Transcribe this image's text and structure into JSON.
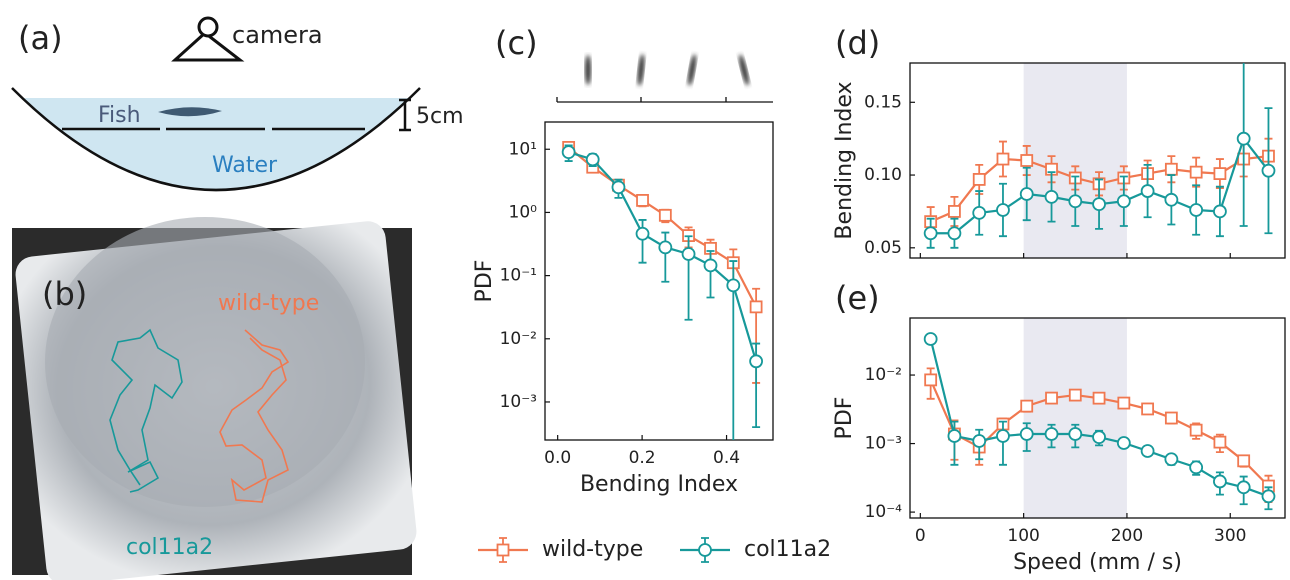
{
  "panel_a": {
    "label": "(a)",
    "camera": "camera",
    "fish": "Fish",
    "scale": "5cm",
    "water": "Water"
  },
  "panel_b": {
    "label": "(b)",
    "wild_type": "wild-type",
    "mutant": "col11a2"
  },
  "chart_data": [
    {
      "type": "line",
      "panel_label": "(c)",
      "x_label": "Bending Index",
      "y_label": "PDF",
      "x": [
        0.026,
        0.083,
        0.144,
        0.201,
        0.255,
        0.31,
        0.362,
        0.416,
        0.47
      ],
      "series": [
        {
          "name": "wild-type",
          "color": "#f07850",
          "marker": "square",
          "values": [
            10.7,
            5.2,
            2.7,
            1.55,
            0.9,
            0.43,
            0.27,
            0.16,
            0.032
          ],
          "yerr": [
            2,
            0.8,
            0.4,
            0.3,
            0.2,
            0.15,
            0.1,
            0.1,
            0.03
          ]
        },
        {
          "name": "col11a2",
          "color": "#17999a",
          "marker": "circle",
          "values": [
            9,
            6.9,
            2.5,
            0.46,
            0.28,
            0.22,
            0.145,
            0.07,
            0.0044
          ],
          "yerr": [
            2.5,
            1.5,
            0.8,
            0.3,
            0.2,
            0.2,
            0.1,
            0.1,
            0.004
          ]
        }
      ],
      "xlim": [
        -0.03,
        0.51
      ],
      "xticks": [
        {
          "value": 0,
          "label": "0.0"
        },
        0.2,
        0.4
      ],
      "ylim": [
        0.00025,
        27
      ],
      "log_y": true,
      "yticks": [
        {
          "value": 10,
          "label": "10¹"
        },
        {
          "value": 1,
          "label": "10⁰"
        },
        {
          "value": 0.1,
          "label": "10⁻¹"
        },
        {
          "value": 0.01,
          "label": "10⁻²"
        },
        {
          "value": 0.001,
          "label": "10⁻³"
        }
      ]
    },
    {
      "type": "line",
      "panel_label": "(d)",
      "y_label": "Bending Index",
      "x": [
        10,
        33,
        57,
        80,
        103,
        127,
        150,
        173,
        197,
        220,
        243,
        267,
        290,
        313,
        337
      ],
      "series": [
        {
          "color": "#f07850",
          "marker": "square",
          "values": [
            0.068,
            0.075,
            0.097,
            0.111,
            0.11,
            0.104,
            0.098,
            0.094,
            0.098,
            0.101,
            0.104,
            0.102,
            0.101,
            0.111,
            0.113
          ],
          "yerr": [
            0.01,
            0.01,
            0.01,
            0.012,
            0.01,
            0.009,
            0.008,
            0.008,
            0.008,
            0.009,
            0.009,
            0.01,
            0.01,
            0.012,
            0.012
          ]
        },
        {
          "color": "#17999a",
          "marker": "circle",
          "values": [
            0.06,
            0.06,
            0.074,
            0.076,
            0.087,
            0.085,
            0.082,
            0.08,
            0.082,
            0.089,
            0.083,
            0.076,
            0.075,
            0.125,
            0.103
          ],
          "yerr": [
            0.01,
            0.01,
            0.015,
            0.018,
            0.018,
            0.017,
            0.017,
            0.017,
            0.017,
            0.018,
            0.017,
            0.017,
            0.017,
            0.06,
            0.043
          ]
        }
      ],
      "xlim": [
        -10,
        353
      ],
      "xticks": [
        0,
        100,
        200,
        300
      ],
      "x_tick_labels": false,
      "ylim": [
        0.043,
        0.177
      ],
      "yticks": [
        0.05,
        {
          "value": 0.1,
          "label": "0.10"
        },
        0.15
      ],
      "shade": [
        100,
        200
      ]
    },
    {
      "type": "line",
      "panel_label": "(e)",
      "x_label": "Speed (mm / s)",
      "y_label": "PDF",
      "x": [
        10,
        33,
        57,
        80,
        103,
        127,
        150,
        173,
        197,
        220,
        243,
        267,
        290,
        313,
        337
      ],
      "series": [
        {
          "color": "#f07850",
          "marker": "square",
          "values": [
            0.0085,
            0.00138,
            0.00089,
            0.00193,
            0.00352,
            0.00461,
            0.0051,
            0.0046,
            0.0039,
            0.0032,
            0.00236,
            0.00157,
            0.00105,
            0.00056,
            0.00024
          ],
          "yerr": [
            0.004,
            0.0008,
            0.0004,
            0.0004,
            0.0006,
            0.0006,
            0.0006,
            0.0006,
            0.0005,
            0.0005,
            0.0004,
            0.0004,
            0.0003,
            0.0001,
            0.0001
          ]
        },
        {
          "color": "#17999a",
          "marker": "circle",
          "values": [
            0.0336,
            0.00129,
            0.00109,
            0.00129,
            0.00138,
            0.00138,
            0.00138,
            0.00124,
            0.00102,
            0.00078,
            0.00059,
            0.00045,
            0.00028,
            0.00023,
            0.00017
          ],
          "yerr": [
            0.003,
            0.0008,
            0.0005,
            0.0008,
            0.0006,
            0.0005,
            0.0005,
            0.0003,
            0.0001,
            0.0001,
            0.0001,
            0.0001,
            0.0001,
            0.0001,
            6e-05
          ]
        }
      ],
      "xlim": [
        -10,
        353
      ],
      "xticks": [
        0,
        100,
        200,
        300
      ],
      "ylim": [
        8.2e-05,
        0.068
      ],
      "log_y": true,
      "yticks": [
        {
          "value": 0.01,
          "label": "10⁻²"
        },
        {
          "value": 0.001,
          "label": "10⁻³"
        },
        {
          "value": 0.0001,
          "label": "10⁻⁴"
        }
      ],
      "shade": [
        100,
        200
      ]
    }
  ]
}
